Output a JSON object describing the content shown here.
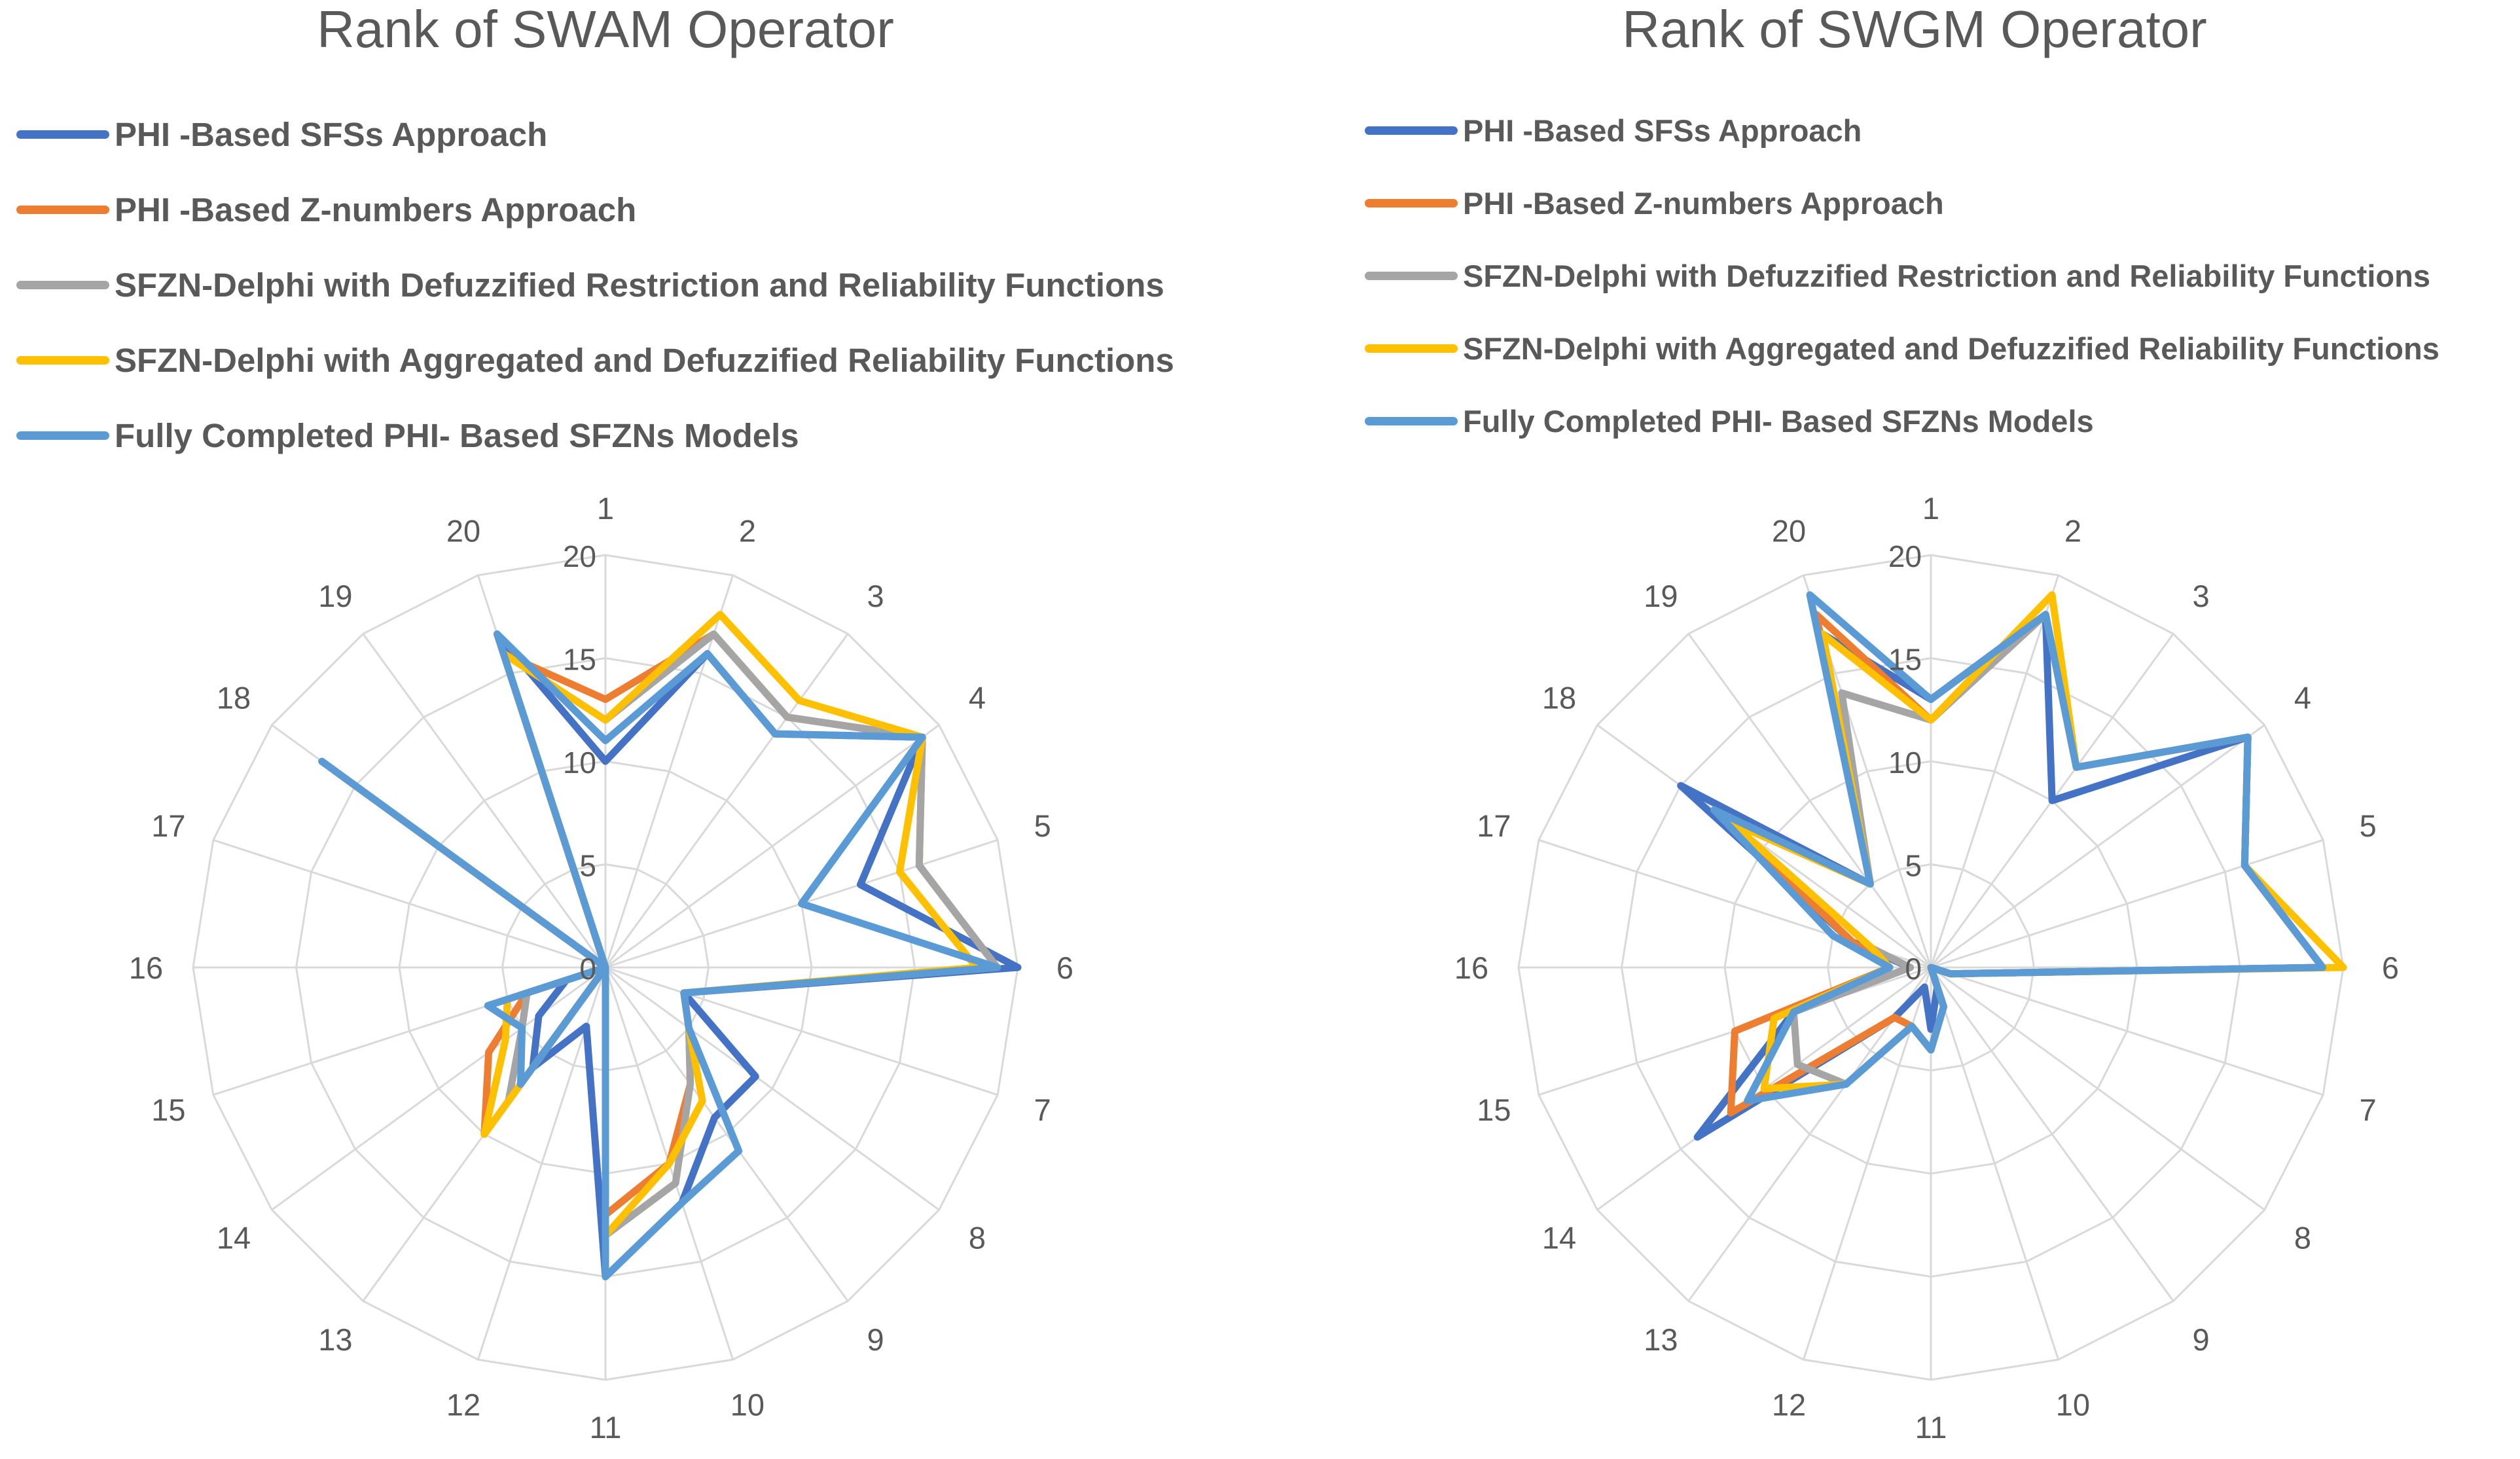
{
  "series_meta": [
    {
      "name": "PHI -Based SFSs Approach",
      "color": "#4472C4"
    },
    {
      "name": "PHI -Based Z-numbers Approach",
      "color": "#ED7D31"
    },
    {
      "name": "SFZN-Delphi with Defuzzified Restriction and Reliability Functions",
      "color": "#A5A5A5"
    },
    {
      "name": "SFZN-Delphi with Aggregated and Defuzzified Reliability Functions",
      "color": "#FFC000"
    },
    {
      "name": "Fully Completed PHI- Based SFZNs Models",
      "color": "#5B9BD5"
    }
  ],
  "chart_data": [
    {
      "type": "radar",
      "title": "Rank of SWAM Operator",
      "categories": [
        "1",
        "2",
        "3",
        "4",
        "5",
        "6",
        "7",
        "8",
        "9",
        "10",
        "11",
        "12",
        "13",
        "14",
        "15",
        "16",
        "17",
        "18",
        "19",
        "20"
      ],
      "tick_labels": [
        "0",
        "5",
        "10",
        "15",
        "20"
      ],
      "rmin": 0,
      "rmax": 20,
      "grid": true,
      "legend": "top",
      "series": [
        {
          "name": "PHI -Based SFSs Approach",
          "values": [
            10,
            16,
            14,
            19,
            13,
            20,
            4,
            9,
            9,
            12,
            15,
            3,
            6,
            4,
            2,
            0,
            0,
            17,
            0,
            17
          ]
        },
        {
          "name": "PHI -Based Z-numbers Approach",
          "values": [
            13,
            17,
            15,
            19,
            16,
            19,
            4,
            5,
            7,
            10,
            12,
            0,
            10,
            7,
            4,
            0,
            0,
            16,
            0,
            16
          ]
        },
        {
          "name": "SFZN-Delphi with Defuzzified Restriction and Reliability Functions",
          "values": [
            12,
            17,
            15,
            19,
            16,
            19,
            4,
            5,
            7,
            11,
            13,
            0,
            8,
            5,
            4,
            0,
            0,
            16,
            0,
            16
          ]
        },
        {
          "name": "SFZN-Delphi with Aggregated and Defuzzified Reliability Functions",
          "values": [
            12,
            18,
            16,
            19,
            15,
            18,
            4,
            5,
            8,
            10,
            13,
            0,
            10,
            6,
            5,
            0,
            0,
            16,
            0,
            16
          ]
        },
        {
          "name": "Fully Completed PHI- Based SFZNs Models",
          "values": [
            11,
            16,
            14,
            19,
            10,
            19,
            4,
            5,
            11,
            12,
            15,
            0,
            7,
            5,
            6,
            0,
            0,
            17,
            0,
            17
          ]
        }
      ]
    },
    {
      "type": "radar",
      "title": "Rank of SWGM Operator",
      "categories": [
        "1",
        "2",
        "3",
        "4",
        "5",
        "6",
        "7",
        "8",
        "9",
        "10",
        "11",
        "12",
        "13",
        "14",
        "15",
        "16",
        "17",
        "18",
        "19",
        "20"
      ],
      "tick_labels": [
        "0",
        "5",
        "10",
        "15",
        "20"
      ],
      "rmin": 0,
      "rmax": 20,
      "grid": true,
      "legend": "top",
      "series": [
        {
          "name": "PHI -Based SFSs Approach",
          "values": [
            13,
            18,
            10,
            19,
            16,
            19,
            1,
            0,
            0,
            1,
            3,
            1,
            3,
            14,
            7,
            1,
            4,
            15,
            5,
            17
          ]
        },
        {
          "name": "PHI -Based Z-numbers Approach",
          "values": [
            12,
            18,
            12,
            19,
            16,
            19,
            1,
            0,
            0,
            2,
            4,
            3,
            3,
            12,
            10,
            2,
            4,
            13,
            5,
            18
          ]
        },
        {
          "name": "SFZN-Delphi with Defuzzified Restriction and Reliability Functions",
          "values": [
            12,
            18,
            12,
            19,
            16,
            19,
            1,
            0,
            0,
            2,
            4,
            3,
            7,
            8,
            7,
            1,
            3,
            12,
            5,
            14
          ]
        },
        {
          "name": "SFZN-Delphi with Aggregated and Defuzzified Reliability Functions",
          "values": [
            12,
            19,
            12,
            19,
            16,
            20,
            1,
            0,
            0,
            2,
            4,
            3,
            7,
            10,
            8,
            2,
            3,
            12,
            5,
            17
          ]
        },
        {
          "name": "Fully Completed PHI- Based SFZNs Models",
          "values": [
            13,
            18,
            12,
            19,
            16,
            19,
            1,
            0,
            0,
            2,
            4,
            3,
            7,
            11,
            7,
            2,
            5,
            13,
            5,
            19
          ]
        }
      ]
    }
  ]
}
